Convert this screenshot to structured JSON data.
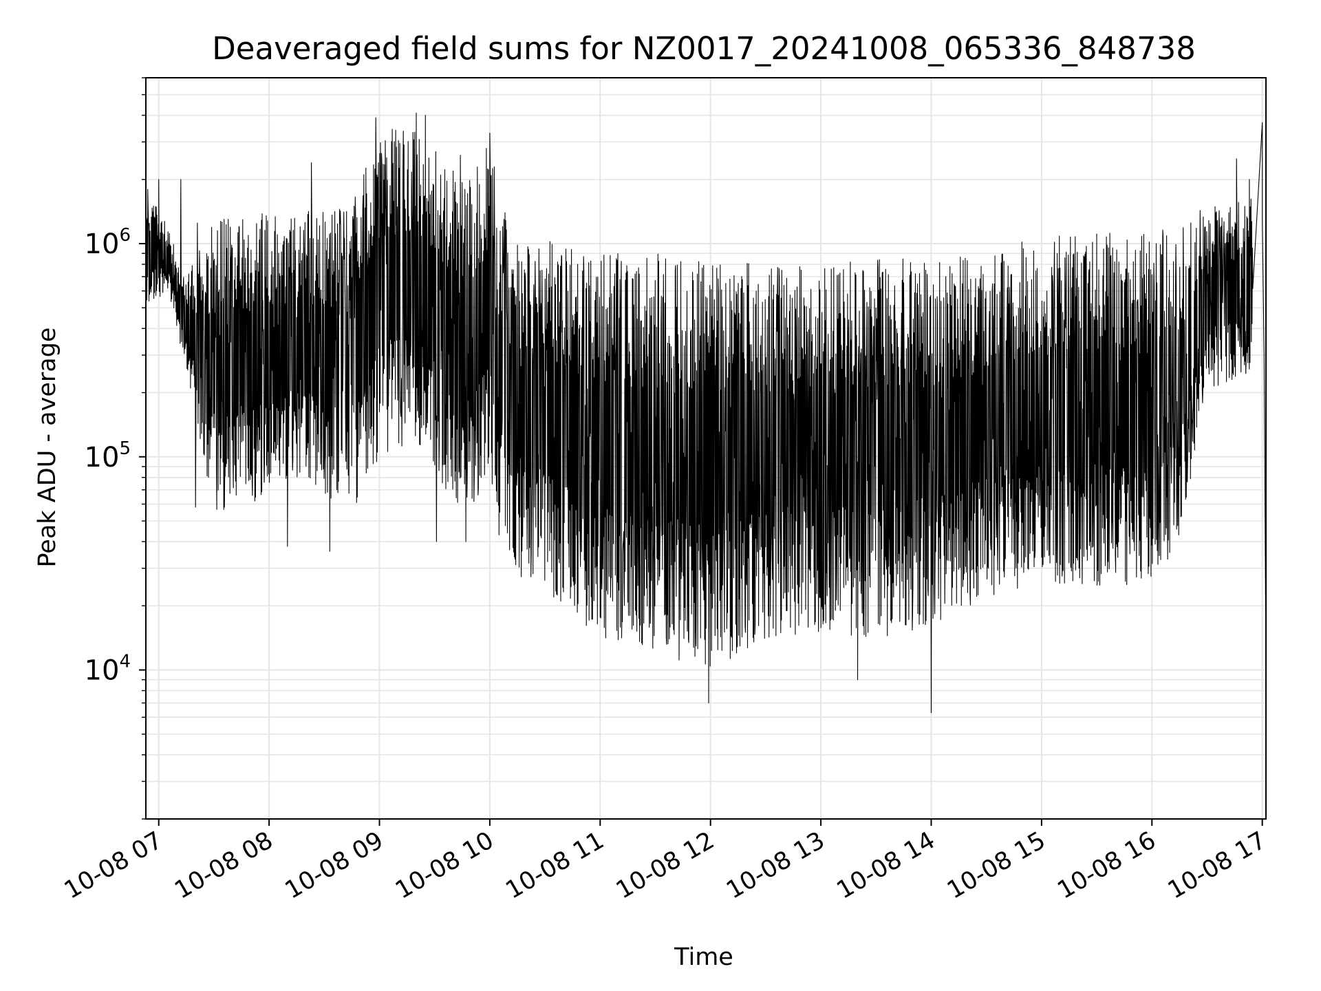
{
  "chart_data": {
    "type": "line",
    "title": "Deaveraged field sums for NZ0017_20241008_065336_848738",
    "xlabel": "Time",
    "ylabel": "Peak ADU - average",
    "yscale": "log",
    "xlim": [
      "10-08 06:53",
      "10-08 17:02"
    ],
    "ylim": [
      2000,
      6000000
    ],
    "grid": true,
    "grid_color": "#e5e5e5",
    "line_color": "#000000",
    "x_ticks": [
      "10-08 07",
      "10-08 08",
      "10-08 09",
      "10-08 10",
      "10-08 11",
      "10-08 12",
      "10-08 13",
      "10-08 14",
      "10-08 15",
      "10-08 16",
      "10-08 17"
    ],
    "y_ticks": [
      {
        "base": "10",
        "exp": "4",
        "value": 10000
      },
      {
        "base": "10",
        "exp": "5",
        "value": 100000
      },
      {
        "base": "10",
        "exp": "6",
        "value": 1000000
      }
    ],
    "series": [
      {
        "style": "oscillating",
        "envelope": [
          {
            "t": "10-08 06:53",
            "hi": 1800000,
            "lo": 500000
          },
          {
            "t": "10-08 07:05",
            "hi": 1200000,
            "lo": 600000
          },
          {
            "t": "10-08 07:15",
            "hi": 700000,
            "lo": 250000
          },
          {
            "t": "10-08 07:30",
            "hi": 1300000,
            "lo": 55000
          },
          {
            "t": "10-08 07:50",
            "hi": 1400000,
            "lo": 60000
          },
          {
            "t": "10-08 08:15",
            "hi": 1400000,
            "lo": 80000
          },
          {
            "t": "10-08 08:45",
            "hi": 1500000,
            "lo": 55000
          },
          {
            "t": "10-08 09:00",
            "hi": 3500000,
            "lo": 100000
          },
          {
            "t": "10-08 09:20",
            "hi": 3500000,
            "lo": 120000
          },
          {
            "t": "10-08 09:45",
            "hi": 2000000,
            "lo": 50000
          },
          {
            "t": "10-08 10:00",
            "hi": 3000000,
            "lo": 80000
          },
          {
            "t": "10-08 10:10",
            "hi": 1200000,
            "lo": 30000
          },
          {
            "t": "10-08 10:40",
            "hi": 1000000,
            "lo": 20000
          },
          {
            "t": "10-08 11:00",
            "hi": 900000,
            "lo": 14000
          },
          {
            "t": "10-08 11:30",
            "hi": 900000,
            "lo": 12000
          },
          {
            "t": "10-08 12:00",
            "hi": 850000,
            "lo": 10000
          },
          {
            "t": "10-08 12:30",
            "hi": 800000,
            "lo": 14000
          },
          {
            "t": "10-08 13:00",
            "hi": 800000,
            "lo": 15000
          },
          {
            "t": "10-08 13:30",
            "hi": 850000,
            "lo": 14000
          },
          {
            "t": "10-08 14:00",
            "hi": 850000,
            "lo": 16000
          },
          {
            "t": "10-08 14:30",
            "hi": 900000,
            "lo": 22000
          },
          {
            "t": "10-08 15:00",
            "hi": 1100000,
            "lo": 25000
          },
          {
            "t": "10-08 15:30",
            "hi": 1150000,
            "lo": 24000
          },
          {
            "t": "10-08 16:00",
            "hi": 1150000,
            "lo": 25000
          },
          {
            "t": "10-08 16:15",
            "hi": 1300000,
            "lo": 40000
          },
          {
            "t": "10-08 16:30",
            "hi": 1500000,
            "lo": 200000
          },
          {
            "t": "10-08 16:55",
            "hi": 1800000,
            "lo": 250000
          }
        ],
        "spikes": [
          {
            "t": "10-08 06:54",
            "v": 1800000
          },
          {
            "t": "10-08 07:00",
            "v": 2000000
          },
          {
            "t": "10-08 07:12",
            "v": 2000000
          },
          {
            "t": "10-08 07:20",
            "v": 58000
          },
          {
            "t": "10-08 07:21",
            "v": 1250000
          },
          {
            "t": "10-08 08:10",
            "v": 38000
          },
          {
            "t": "10-08 08:23",
            "v": 2400000
          },
          {
            "t": "10-08 08:33",
            "v": 36000
          },
          {
            "t": "10-08 08:58",
            "v": 3900000
          },
          {
            "t": "10-08 09:20",
            "v": 4100000
          },
          {
            "t": "10-08 09:25",
            "v": 4000000
          },
          {
            "t": "10-08 09:31",
            "v": 40000
          },
          {
            "t": "10-08 09:44",
            "v": 2600000
          },
          {
            "t": "10-08 09:47",
            "v": 40000
          },
          {
            "t": "10-08 10:00",
            "v": 3300000
          },
          {
            "t": "10-08 10:05",
            "v": 43000
          },
          {
            "t": "10-08 11:59",
            "v": 7000
          },
          {
            "t": "10-08 13:20",
            "v": 9000
          },
          {
            "t": "10-08 14:00",
            "v": 6300
          },
          {
            "t": "10-08 16:46",
            "v": 2500000
          },
          {
            "t": "10-08 16:53",
            "v": 2000000
          },
          {
            "t": "10-08 17:00",
            "v": 3700000
          }
        ],
        "tail": [
          {
            "t": "10-08 17:00",
            "v": 1300000
          },
          {
            "t": "10-08 17:01",
            "v": 300000
          },
          {
            "t": "10-08 17:02",
            "v": 10000
          },
          {
            "t": "10-08 17:02",
            "v": 2700
          }
        ]
      }
    ]
  }
}
